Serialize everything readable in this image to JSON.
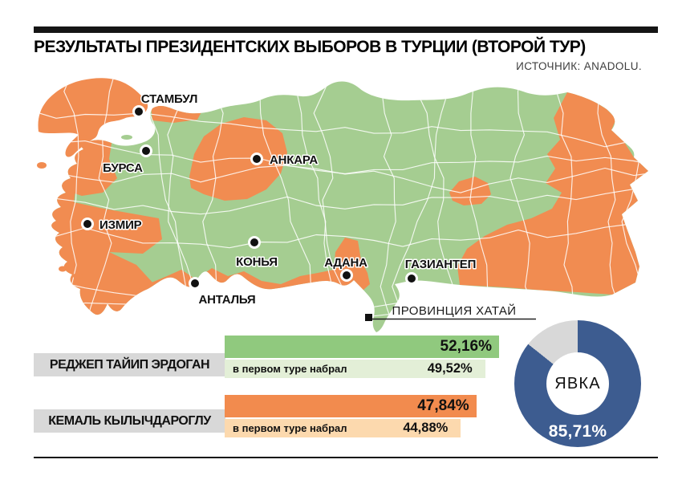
{
  "header": {
    "title": "РЕЗУЛЬТАТЫ ПРЕЗИДЕНТСКИХ ВЫБОРОВ В ТУРЦИИ (ВТОРОЙ ТУР)",
    "source": "ИСТОЧНИК: ANADOLU."
  },
  "map": {
    "colors": {
      "erdogan_green": "#a5cd91",
      "kilicdaroglu_orange": "#f18c51",
      "border_white": "#ffffff"
    },
    "cities": [
      {
        "name": "СТАМБУЛ",
        "dot": [
          133,
          47
        ],
        "label": [
          171,
          36
        ],
        "anchor": "middle"
      },
      {
        "name": "БУРСА",
        "dot": [
          142,
          96
        ],
        "label": [
          113,
          122
        ],
        "anchor": "middle"
      },
      {
        "name": "АНКАРА",
        "dot": [
          280,
          106
        ],
        "label": [
          296,
          112
        ],
        "anchor": "start"
      },
      {
        "name": "ИЗМИР",
        "dot": [
          69,
          187
        ],
        "label": [
          84,
          193
        ],
        "anchor": "start"
      },
      {
        "name": "КОНЬЯ",
        "dot": [
          277,
          210
        ],
        "label": [
          280,
          239
        ],
        "anchor": "middle"
      },
      {
        "name": "АДАНА",
        "dot": [
          392,
          251
        ],
        "label": [
          391,
          240
        ],
        "anchor": "middle"
      },
      {
        "name": "ГАЗИАНТЕП",
        "dot": [
          473,
          255
        ],
        "label": [
          509,
          242
        ],
        "anchor": "middle"
      },
      {
        "name": "АНТАЛЬЯ",
        "dot": [
          203,
          261
        ],
        "label": [
          243,
          286
        ],
        "anchor": "middle"
      }
    ],
    "callout": {
      "text": "ПРОВИНЦИЯ ХАТАЙ"
    }
  },
  "results": [
    {
      "candidate": "РЕДЖЕП ТАЙИП ЭРДОГАН",
      "second_round": {
        "display": "52,16%",
        "value": 52.16
      },
      "first_round": {
        "prefix": "в первом туре набрал",
        "display": "49,52%",
        "value": 49.52
      },
      "colors": {
        "main": "#90c97e",
        "light": "#e3efd7"
      }
    },
    {
      "candidate": "КЕМАЛЬ КЫЛЫЧДАРОГЛУ",
      "second_round": {
        "display": "47,84%",
        "value": 47.84
      },
      "first_round": {
        "prefix": "в первом туре набрал",
        "display": "44,88%",
        "value": 44.88
      },
      "colors": {
        "main": "#f28b4e",
        "light": "#fcd9ae"
      }
    }
  ],
  "turnout": {
    "label": "ЯВКА",
    "display": "85,71%",
    "value": 85.71,
    "color": "#3d5c90",
    "rest_color": "#d8d8d8"
  },
  "ui": {
    "label_bg": "#d8d8d8"
  },
  "chart_data": [
    {
      "type": "heatmap",
      "subtype": "choropleth-map",
      "title": "Карта провинций Турции по победителю второго тура",
      "legend_implicit": [
        {
          "color": "#a5cd91",
          "meaning": "РЕДЖЕП ТАЙИП ЭРДОГАН"
        },
        {
          "color": "#f18c51",
          "meaning": "КЕМАЛЬ КЫЛЫЧДАРОГЛУ"
        }
      ],
      "labeled_cities": [
        "СТАМБУЛ",
        "БУРСА",
        "АНКАРА",
        "ИЗМИР",
        "КОНЬЯ",
        "АДАНА",
        "ГАЗИАНТЕП",
        "АНТАЛЬЯ"
      ],
      "annotation": "ПРОВИНЦИЯ ХАТАЙ"
    },
    {
      "type": "bar",
      "orientation": "horizontal",
      "categories": [
        "РЕДЖЕП ТАЙИП ЭРДОГАН",
        "КЕМАЛЬ КЫЛЫЧДАРОГЛУ"
      ],
      "series": [
        {
          "name": "второй тур",
          "values": [
            52.16,
            47.84
          ]
        },
        {
          "name": "в первом туре набрал",
          "values": [
            49.52,
            44.88
          ]
        }
      ],
      "value_suffix": "%"
    },
    {
      "type": "pie",
      "subtype": "donut",
      "title": "ЯВКА",
      "slices": [
        {
          "label": "ЯВКА",
          "value": 85.71,
          "color": "#3d5c90"
        },
        {
          "label": "",
          "value": 14.29,
          "color": "#d8d8d8"
        }
      ]
    }
  ]
}
